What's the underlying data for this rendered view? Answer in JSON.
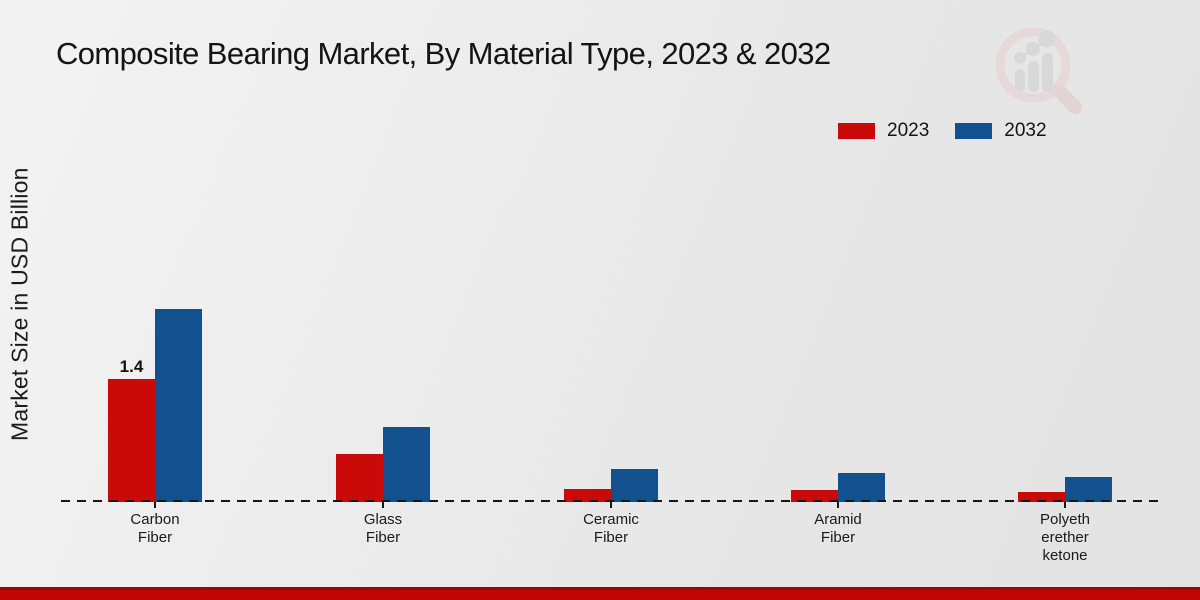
{
  "title": "Composite Bearing Market, By Material Type, 2023 & 2032",
  "watermark_icon": "magnifier-bar-chart-logo",
  "accent_colors": {
    "series_2023": "#c90a09",
    "series_2032": "#12518e",
    "footer_strip": "#c10505",
    "footer_strip_edge": "#930c04"
  },
  "chart_data": {
    "type": "bar",
    "title": "Composite Bearing Market, By Material Type, 2023 & 2032",
    "xlabel": "",
    "ylabel": "Market Size in USD Billion",
    "categories": [
      "Carbon Fiber",
      "Glass Fiber",
      "Ceramic Fiber",
      "Aramid Fiber",
      "Polyetheretherketone"
    ],
    "category_display_lines": [
      "Carbon\nFiber",
      "Glass\nFiber",
      "Ceramic\nFiber",
      "Aramid\nFiber",
      "Polyeth\nerether\nketone"
    ],
    "series": [
      {
        "name": "2023",
        "color": "#c90a09",
        "values": [
          1.4,
          0.55,
          0.15,
          0.14,
          0.11
        ]
      },
      {
        "name": "2032",
        "color": "#12518e",
        "values": [
          2.2,
          0.85,
          0.37,
          0.33,
          0.28
        ]
      }
    ],
    "data_labels": [
      {
        "category": "Carbon Fiber",
        "series": "2023",
        "text": "1.4"
      }
    ],
    "ylim": [
      0,
      2.5
    ],
    "grid": false,
    "y_axis_ticks_visible": false,
    "baseline_style": "dashed",
    "legend_position": "top-right"
  }
}
